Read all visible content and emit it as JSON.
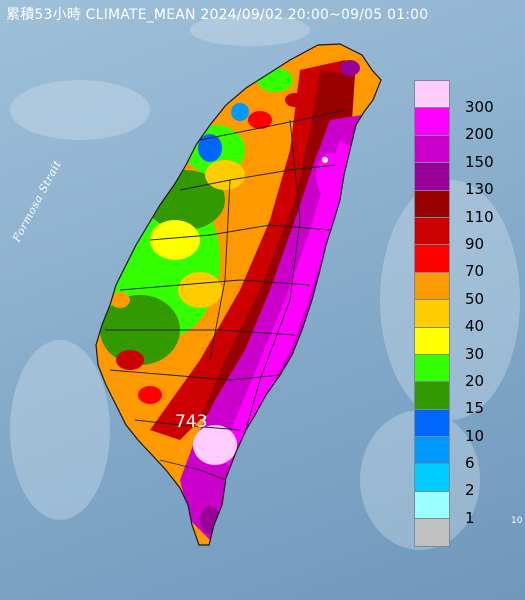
{
  "map": {
    "title": "累積53小時 CLIMATE_MEAN 2024/09/02 20:00~09/05 01:00",
    "strait_label": "Formosa Strait",
    "peak_label": "743",
    "edge_label": "10",
    "base_colors": {
      "sea": "#8fb2cf",
      "boundary": "#222222",
      "coast": "#1a1a1a"
    }
  },
  "legend": {
    "items": [
      {
        "label": "300",
        "color": "#ffccff"
      },
      {
        "label": "200",
        "color": "#ff00ff"
      },
      {
        "label": "150",
        "color": "#cc00cc"
      },
      {
        "label": "130",
        "color": "#990099"
      },
      {
        "label": "110",
        "color": "#990000"
      },
      {
        "label": "90",
        "color": "#cc0000"
      },
      {
        "label": "70",
        "color": "#ff0000"
      },
      {
        "label": "50",
        "color": "#ff9900"
      },
      {
        "label": "40",
        "color": "#ffcc00"
      },
      {
        "label": "30",
        "color": "#ffff00"
      },
      {
        "label": "20",
        "color": "#33ff00"
      },
      {
        "label": "15",
        "color": "#339900"
      },
      {
        "label": "10",
        "color": "#0066ff"
      },
      {
        "label": "6",
        "color": "#0099ff"
      },
      {
        "label": "2",
        "color": "#00ccff"
      },
      {
        "label": "1",
        "color": "#99ffff"
      },
      {
        "label": "",
        "color": "#c0c0c0"
      }
    ]
  }
}
